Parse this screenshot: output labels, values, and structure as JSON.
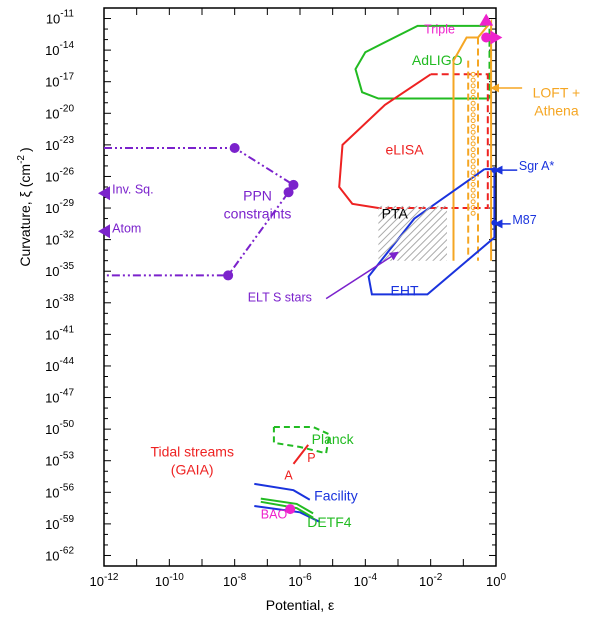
{
  "chart_data": {
    "type": "line",
    "xlabel": "Potential, ε",
    "ylabel_main": "Curvature, ξ (cm",
    "ylabel_sup": "-2",
    "ylabel_close": ")",
    "x_log_range": [
      -12,
      0
    ],
    "y_log_range": [
      -63,
      -10
    ],
    "x_ticks": [
      {
        "exp": -12,
        "base": "10",
        "sup": "-12"
      },
      {
        "exp": -10,
        "base": "10",
        "sup": "-10"
      },
      {
        "exp": -8,
        "base": "10",
        "sup": "-8"
      },
      {
        "exp": -6,
        "base": "10",
        "sup": "-6"
      },
      {
        "exp": -4,
        "base": "10",
        "sup": "-4"
      },
      {
        "exp": -2,
        "base": "10",
        "sup": "-2"
      },
      {
        "exp": 0,
        "base": "10",
        "sup": "0"
      }
    ],
    "y_ticks": [
      {
        "exp": -11,
        "base": "10",
        "sup": "-11"
      },
      {
        "exp": -14,
        "base": "10",
        "sup": "-14"
      },
      {
        "exp": -17,
        "base": "10",
        "sup": "-17"
      },
      {
        "exp": -20,
        "base": "10",
        "sup": "-20"
      },
      {
        "exp": -23,
        "base": "10",
        "sup": "-23"
      },
      {
        "exp": -26,
        "base": "10",
        "sup": "-26"
      },
      {
        "exp": -29,
        "base": "10",
        "sup": "-29"
      },
      {
        "exp": -32,
        "base": "10",
        "sup": "-32"
      },
      {
        "exp": -35,
        "base": "10",
        "sup": "-35"
      },
      {
        "exp": -38,
        "base": "10",
        "sup": "-38"
      },
      {
        "exp": -41,
        "base": "10",
        "sup": "-41"
      },
      {
        "exp": -44,
        "base": "10",
        "sup": "-44"
      },
      {
        "exp": -47,
        "base": "10",
        "sup": "-47"
      },
      {
        "exp": -50,
        "base": "10",
        "sup": "-50"
      },
      {
        "exp": -53,
        "base": "10",
        "sup": "-53"
      },
      {
        "exp": -56,
        "base": "10",
        "sup": "-56"
      },
      {
        "exp": -59,
        "base": "10",
        "sup": "-59"
      },
      {
        "exp": -62,
        "base": "10",
        "sup": "-62"
      }
    ],
    "colors": {
      "ppn": "#7b22cc",
      "ligo": "#22bb22",
      "lisa": "#ee2222",
      "loft": "#f5a623",
      "eht": "#1a33dd",
      "magenta": "#ee22cc",
      "pta_hatch": "#aaaaaa",
      "axis": "#000000"
    },
    "series": [
      {
        "id": "ppn",
        "name": "PPN constraints",
        "color_key": "ppn",
        "style": "dashdot",
        "label_lines": [
          "PPN",
          "constraints"
        ],
        "label_pos": [
          -7.3,
          -28.3
        ],
        "paths": [
          [
            [
              -12,
              -23.3
            ],
            [
              -8.0,
              -23.3
            ],
            [
              -6.2,
              -26.8
            ],
            [
              -6.35,
              -27.5
            ],
            [
              -8.2,
              -35.4
            ],
            [
              -12,
              -35.4
            ]
          ]
        ],
        "markers": [
          [
            -8.0,
            -23.3
          ],
          [
            -6.2,
            -26.8
          ],
          [
            -6.35,
            -27.5
          ],
          [
            -8.2,
            -35.4
          ]
        ]
      },
      {
        "id": "adligo",
        "name": "AdLIGO",
        "color_key": "ligo",
        "style": "solid",
        "label_lines": [
          "AdLIGO"
        ],
        "label_pos": [
          -1.8,
          -15.4
        ],
        "paths": [
          [
            [
              -0.45,
              -11.7
            ],
            [
              -2.4,
              -11.7
            ],
            [
              -4.0,
              -14.2
            ],
            [
              -4.3,
              -15.8
            ],
            [
              -4.1,
              -18.0
            ],
            [
              -3.6,
              -18.6
            ],
            [
              -0.2,
              -18.6
            ]
          ]
        ],
        "dashed_paths": [
          [
            [
              -0.45,
              -11.7
            ],
            [
              -0.2,
              -11.7
            ],
            [
              -0.2,
              -18.6
            ]
          ]
        ],
        "markers": []
      },
      {
        "id": "elisa",
        "name": "eLISA",
        "color_key": "lisa",
        "style": "solid",
        "label_lines": [
          "eLISA"
        ],
        "label_pos": [
          -2.8,
          -23.9
        ],
        "paths": [
          [
            [
              -2.0,
              -16.3
            ],
            [
              -3.4,
              -19.2
            ],
            [
              -4.7,
              -23.0
            ],
            [
              -4.8,
              -27.0
            ],
            [
              -4.4,
              -28.6
            ],
            [
              -3.6,
              -29.0
            ]
          ]
        ],
        "dashed_paths": [
          [
            [
              -2.0,
              -16.3
            ],
            [
              -0.25,
              -16.3
            ],
            [
              -0.25,
              -29.0
            ],
            [
              -3.6,
              -29.0
            ]
          ]
        ],
        "markers": []
      },
      {
        "id": "loft",
        "name": "LOFT + Athena",
        "color_key": "loft",
        "style": "solid",
        "label_lines": [
          "LOFT +",
          "Athena"
        ],
        "label_pos": [
          1.85,
          -18.5
        ],
        "paths": [
          [
            [
              -1.3,
              -34.0
            ],
            [
              -1.3,
              -15.0
            ],
            [
              -0.9,
              -12.8
            ],
            [
              -0.55,
              -12.8
            ],
            [
              -0.15,
              -11.3
            ],
            [
              -0.15,
              -34.0
            ]
          ]
        ],
        "dashed_paths": [
          [
            [
              -0.55,
              -12.8
            ],
            [
              -0.55,
              -34.0
            ]
          ],
          [
            [
              -0.85,
              -15.0
            ],
            [
              -0.85,
              -34.0
            ]
          ]
        ],
        "markers": []
      },
      {
        "id": "eht",
        "name": "EHT",
        "color_key": "eht",
        "style": "solid",
        "label_lines": [
          "EHT"
        ],
        "label_pos": [
          -2.8,
          -37.3
        ],
        "paths": [
          [
            [
              -0.35,
              -25.3
            ],
            [
              -0.05,
              -25.3
            ],
            [
              -0.05,
              -31.8
            ],
            [
              -2.1,
              -37.2
            ],
            [
              -3.8,
              -37.2
            ],
            [
              -3.9,
              -35.5
            ],
            [
              -2.5,
              -30.0
            ],
            [
              -0.35,
              -25.3
            ]
          ]
        ],
        "markers": [
          [
            -0.05,
            -25.4
          ],
          [
            -0.05,
            -30.4
          ]
        ]
      },
      {
        "id": "pta",
        "name": "PTA",
        "color_key": "pta_hatch",
        "style": "hatch",
        "label_lines": [
          "PTA"
        ],
        "label_pos": [
          -3.1,
          -30.0
        ],
        "paths": [
          [
            [
              -3.6,
              -28.8
            ],
            [
              -1.5,
              -28.8
            ],
            [
              -1.5,
              -34.0
            ],
            [
              -3.6,
              -34.0
            ]
          ]
        ],
        "markers": []
      },
      {
        "id": "planck",
        "name": "Planck",
        "color_key": "ligo",
        "style": "dashed",
        "label_lines": [
          "Planck"
        ],
        "label_pos": [
          -5.0,
          -51.4
        ],
        "paths": [
          [
            [
              -6.8,
              -49.8
            ],
            [
              -5.6,
              -49.8
            ],
            [
              -5.1,
              -50.5
            ],
            [
              -5.2,
              -52.3
            ],
            [
              -6.0,
              -51.7
            ],
            [
              -6.8,
              -51.3
            ],
            [
              -6.8,
              -49.8
            ]
          ]
        ],
        "markers": []
      },
      {
        "id": "tidal",
        "name": "Tidal streams (GAIA)",
        "color_key": "lisa",
        "style": "solid",
        "label_lines": [
          "Tidal streams",
          "(GAIA)"
        ],
        "label_pos": [
          -9.3,
          -52.6
        ],
        "paths": [
          [
            [
              -5.75,
              -51.5
            ],
            [
              -6.2,
              -53.3
            ]
          ]
        ],
        "markers": []
      },
      {
        "id": "facility",
        "name": "Facility",
        "color_key": "eht",
        "style": "solid",
        "label_lines": [
          "Facility"
        ],
        "label_pos": [
          -4.9,
          -56.8
        ],
        "paths": [
          [
            [
              -7.4,
              -55.2
            ],
            [
              -6.2,
              -55.8
            ],
            [
              -5.7,
              -56.7
            ]
          ],
          [
            [
              -7.4,
              -57.3
            ],
            [
              -6.0,
              -57.9
            ],
            [
              -5.4,
              -58.8
            ]
          ]
        ],
        "markers": []
      },
      {
        "id": "detf4",
        "name": "DETF4",
        "color_key": "ligo",
        "style": "solid",
        "label_lines": [
          "DETF4"
        ],
        "label_pos": [
          -5.1,
          -59.3
        ],
        "paths": [
          [
            [
              -7.2,
              -56.6
            ],
            [
              -6.1,
              -57.1
            ],
            [
              -5.6,
              -58.0
            ]
          ],
          [
            [
              -7.2,
              -56.9
            ],
            [
              -6.1,
              -57.5
            ],
            [
              -5.6,
              -58.4
            ]
          ]
        ],
        "markers": []
      }
    ],
    "text_labels": [
      {
        "id": "p-label",
        "text": "P",
        "pos": [
          -5.65,
          -53.1
        ],
        "color_key": "lisa",
        "anchor": "middle"
      },
      {
        "id": "a-label",
        "text": "A",
        "pos": [
          -6.35,
          -54.8
        ],
        "color_key": "lisa",
        "anchor": "middle"
      },
      {
        "id": "bao-label",
        "text": "BAO",
        "pos": [
          -7.2,
          -58.5
        ],
        "color_key": "magenta",
        "anchor": "start"
      },
      {
        "id": "triple-label",
        "text": "Triple",
        "pos": [
          -2.2,
          -12.4
        ],
        "color_key": "magenta",
        "anchor": "start"
      },
      {
        "id": "sgra-label",
        "text": "Sgr A*",
        "pos": [
          0.7,
          -25.4
        ],
        "color_key": "eht",
        "anchor": "start"
      },
      {
        "id": "m87-label",
        "text": "M87",
        "pos": [
          0.5,
          -30.5
        ],
        "color_key": "eht",
        "anchor": "start"
      },
      {
        "id": "elt-label",
        "text": "ELT S stars",
        "pos": [
          -7.6,
          -37.9
        ],
        "color_key": "ppn",
        "anchor": "start"
      },
      {
        "id": "invsq-label",
        "text": "Inv. Sq.",
        "pos": [
          -11.75,
          -27.6
        ],
        "color_key": "ppn",
        "anchor": "start"
      },
      {
        "id": "atom-label",
        "text": "Atom",
        "pos": [
          -11.75,
          -31.3
        ],
        "color_key": "ppn",
        "anchor": "start"
      }
    ],
    "arrows": [
      {
        "id": "elt-arrow",
        "from": [
          -5.2,
          -37.6
        ],
        "to": [
          -3.0,
          -33.2
        ],
        "color_key": "ppn"
      },
      {
        "id": "loft-arrow",
        "from": [
          0.8,
          -17.6
        ],
        "to": [
          -0.15,
          -17.6
        ],
        "color_key": "loft"
      },
      {
        "id": "sgra-arrow",
        "from": [
          0.65,
          -25.4
        ],
        "to": [
          -0.05,
          -25.4
        ],
        "color_key": "eht"
      },
      {
        "id": "m87-arrow",
        "from": [
          0.45,
          -30.5
        ],
        "to": [
          -0.05,
          -30.5
        ],
        "color_key": "eht"
      }
    ],
    "special_markers": [
      {
        "id": "triple-marker",
        "pos": [
          -0.3,
          -12.8
        ],
        "color_key": "magenta",
        "shape": "circle"
      },
      {
        "id": "triple-up-triangle",
        "pos": [
          -0.3,
          -11.2
        ],
        "color_key": "magenta",
        "shape": "triangle-up"
      },
      {
        "id": "triple-right-triangle",
        "pos": [
          -0.05,
          -12.8
        ],
        "color_key": "magenta",
        "shape": "triangle-right"
      },
      {
        "id": "bao-marker",
        "pos": [
          -6.3,
          -57.6
        ],
        "color_key": "magenta",
        "shape": "circle"
      },
      {
        "id": "invsq-triangle",
        "pos": [
          -12,
          -27.6
        ],
        "color_key": "ppn",
        "shape": "triangle-left"
      },
      {
        "id": "atom-triangle",
        "pos": [
          -12,
          -31.2
        ],
        "color_key": "ppn",
        "shape": "triangle-left"
      }
    ]
  }
}
